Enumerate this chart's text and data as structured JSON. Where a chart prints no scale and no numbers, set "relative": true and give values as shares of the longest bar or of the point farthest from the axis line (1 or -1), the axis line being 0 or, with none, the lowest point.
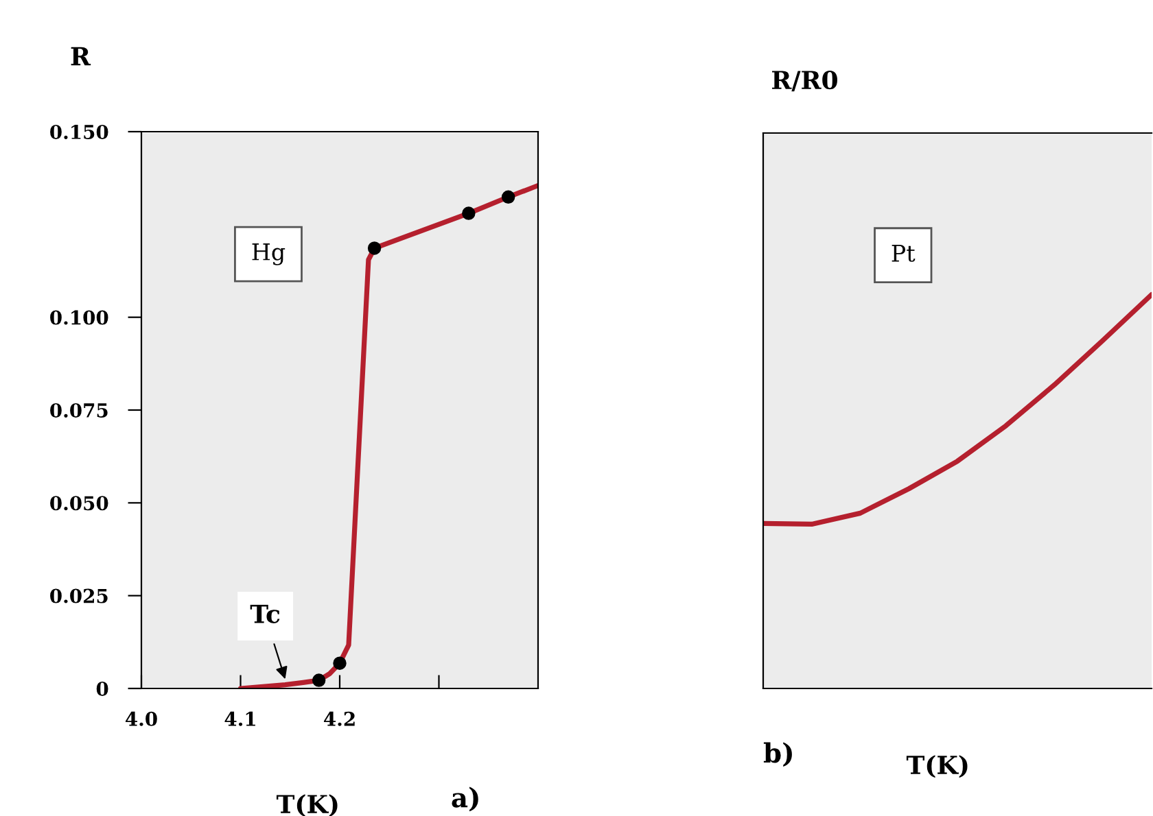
{
  "chart_data": [
    {
      "type": "line",
      "ylabel": "R",
      "xlabel": "T(K)",
      "xlim": [
        4.0,
        4.4
      ],
      "xticks": [
        {
          "value": 4.0,
          "label": "4.0"
        },
        4.1,
        4.2,
        {
          "value": 4.3,
          "label": null
        }
      ],
      "ylim": [
        0,
        0.15
      ],
      "yticks": [
        {
          "value": 0,
          "label": "0"
        },
        0.025,
        {
          "value": 0.05,
          "label": "0.050"
        },
        0.075,
        {
          "value": 0.1,
          "label": "0.100"
        },
        {
          "value": 0.15,
          "label": "0.150"
        }
      ],
      "grid": false,
      "legend": false,
      "annotations": [
        "Hg",
        "a)",
        {
          "text": "Tc",
          "x": 4.145,
          "y": 0.0025
        }
      ],
      "series": [
        {
          "type": "line",
          "color": "#b5202e",
          "x": [
            4.1,
            4.145,
            4.163,
            4.179,
            4.19,
            4.2,
            4.209,
            4.229,
            4.235,
            4.33,
            4.37,
            4.4
          ],
          "values": [
            0.0,
            0.001,
            0.0016,
            0.0022,
            0.004,
            0.0068,
            0.0117,
            0.1155,
            0.1186,
            0.128,
            0.1324,
            0.1355
          ]
        },
        {
          "type": "scatter",
          "color": "#000000",
          "marker": "circle",
          "x": [
            4.179,
            4.2,
            4.235,
            4.33,
            4.37
          ],
          "values": [
            0.0022,
            0.0068,
            0.1186,
            0.128,
            0.1324
          ]
        }
      ]
    },
    {
      "type": "line",
      "relative": true,
      "ylabel": "R/R0",
      "xlabel": "T(K)",
      "grid": false,
      "legend": false,
      "annotations": [
        "Pt",
        "b)"
      ],
      "categories": [
        null,
        null,
        null,
        null,
        null,
        null,
        null,
        null,
        null
      ],
      "series": [
        {
          "color": "#b5202e",
          "values": [
            0.419,
            0.417,
            0.445,
            0.507,
            0.577,
            0.667,
            0.771,
            0.884,
            1.0
          ]
        }
      ]
    }
  ]
}
